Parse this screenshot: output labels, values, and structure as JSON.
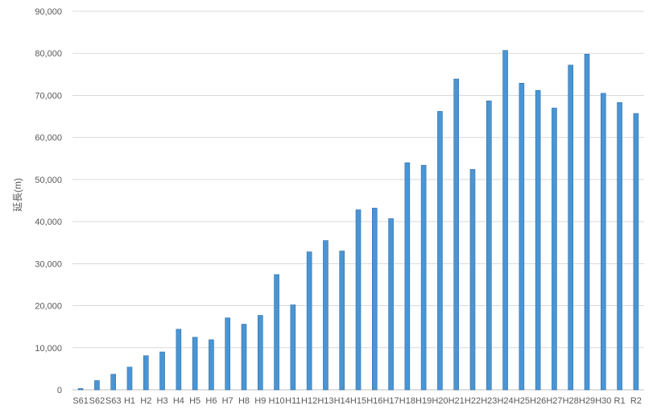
{
  "chart_data": {
    "type": "bar",
    "title": "",
    "xlabel": "",
    "ylabel": "延長(m)",
    "ylim": [
      0,
      90000
    ],
    "y_ticks": [
      0,
      10000,
      20000,
      30000,
      40000,
      50000,
      60000,
      70000,
      80000,
      90000
    ],
    "y_tick_labels": [
      "0",
      "10,000",
      "20,000",
      "30,000",
      "40,000",
      "50,000",
      "60,000",
      "70,000",
      "80,000",
      "90,000"
    ],
    "grid": true,
    "legend": "none",
    "bar_color": "#4a95d3",
    "bar_edge_color": "#2f6fa8",
    "categories": [
      "S61",
      "S62",
      "S63",
      "H1",
      "H2",
      "H3",
      "H4",
      "H5",
      "H6",
      "H7",
      "H8",
      "H9",
      "H10",
      "H11",
      "H12",
      "H13",
      "H14",
      "H15",
      "H16",
      "H17",
      "H18",
      "H19",
      "H20",
      "H21",
      "H22",
      "H23",
      "H24",
      "H25",
      "H26",
      "H27",
      "H28",
      "H29",
      "H30",
      "R1",
      "R2"
    ],
    "values": [
      300,
      2200,
      3700,
      5400,
      8100,
      9000,
      14400,
      12500,
      11900,
      17100,
      15600,
      17700,
      27400,
      20200,
      32800,
      35500,
      33000,
      42800,
      43200,
      40700,
      54000,
      53400,
      66200,
      73900,
      52400,
      68700,
      80700,
      72900,
      71200,
      67000,
      77200,
      79800,
      70500,
      68300,
      65700
    ]
  }
}
